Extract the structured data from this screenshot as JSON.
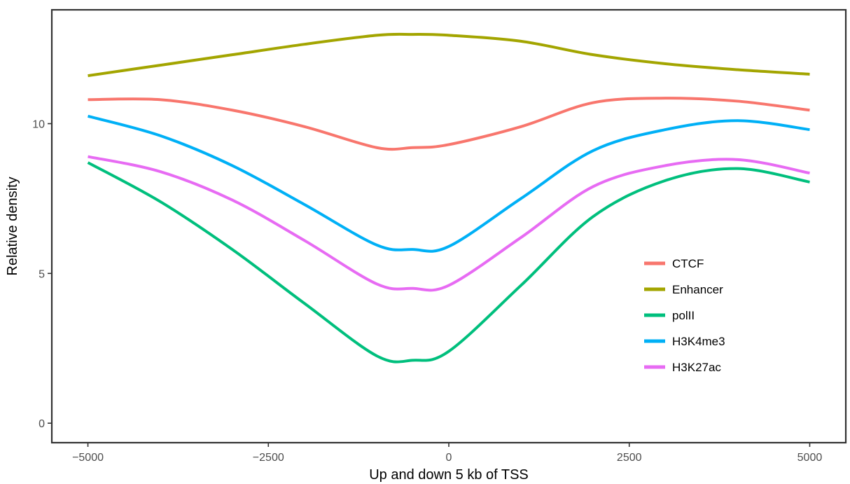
{
  "chart_data": {
    "type": "line",
    "title": "",
    "xlabel": "Up and down 5 kb of TSS",
    "ylabel": "Relative density",
    "xlim": [
      -5500,
      5500
    ],
    "ylim": [
      -0.65,
      13.8
    ],
    "x_ticks": [
      {
        "value": -5000,
        "label": "−5000"
      },
      {
        "value": -2500,
        "label": "−2500"
      },
      {
        "value": 0,
        "label": "0"
      },
      {
        "value": 2500,
        "label": "2500"
      },
      {
        "value": 5000,
        "label": "5000"
      }
    ],
    "y_ticks": [
      {
        "value": 0,
        "label": "0"
      },
      {
        "value": 5,
        "label": "5"
      },
      {
        "value": 10,
        "label": "10"
      }
    ],
    "grid": false,
    "legend_position": "right-inside",
    "x": [
      -5000,
      -4000,
      -3000,
      -2000,
      -1000,
      -500,
      0,
      1000,
      2000,
      3000,
      4000,
      5000
    ],
    "series": [
      {
        "name": "CTCF",
        "color": "#F8766D",
        "values": [
          10.8,
          10.8,
          10.45,
          9.9,
          9.2,
          9.2,
          9.3,
          9.9,
          10.7,
          10.85,
          10.75,
          10.45
        ]
      },
      {
        "name": "Enhancer",
        "color": "#A3A500",
        "values": [
          11.6,
          11.95,
          12.3,
          12.65,
          12.95,
          12.98,
          12.95,
          12.75,
          12.3,
          12.0,
          11.8,
          11.65
        ]
      },
      {
        "name": "polII",
        "color": "#00BF7D",
        "values": [
          8.7,
          7.4,
          5.8,
          4.0,
          2.25,
          2.1,
          2.4,
          4.6,
          6.9,
          8.1,
          8.5,
          8.05
        ]
      },
      {
        "name": "H3K4me3",
        "color": "#00B0F6",
        "values": [
          10.25,
          9.6,
          8.6,
          7.3,
          5.95,
          5.8,
          5.9,
          7.5,
          9.1,
          9.8,
          10.1,
          9.8
        ]
      },
      {
        "name": "H3K27ac",
        "color": "#E76BF3",
        "values": [
          8.9,
          8.4,
          7.45,
          6.1,
          4.65,
          4.5,
          4.6,
          6.2,
          7.9,
          8.6,
          8.8,
          8.35
        ]
      }
    ]
  }
}
